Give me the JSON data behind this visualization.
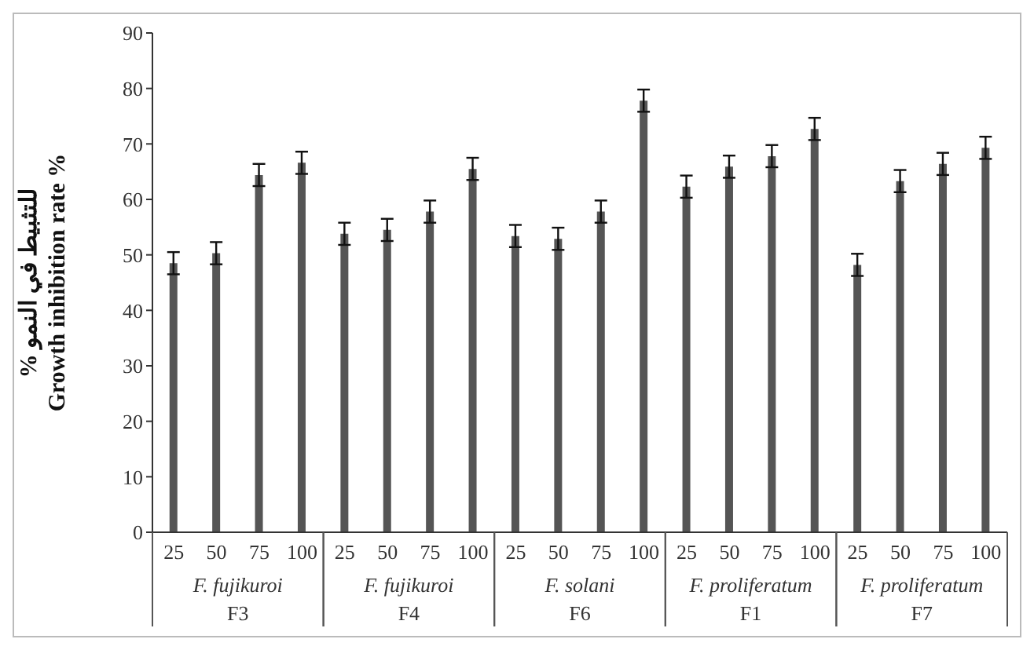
{
  "chart_data": {
    "type": "bar",
    "ylabel": "% للتثبيط في النمو\nGrowth inhibition rate %",
    "categories": [
      "25",
      "50",
      "75",
      "100",
      "25",
      "50",
      "75",
      "100",
      "25",
      "50",
      "75",
      "100",
      "25",
      "50",
      "75",
      "100",
      "25",
      "50",
      "75",
      "100"
    ],
    "values": [
      48.5,
      50.3,
      64.4,
      66.6,
      53.8,
      54.5,
      57.8,
      65.5,
      53.4,
      52.9,
      57.8,
      77.8,
      62.3,
      65.9,
      67.8,
      72.7,
      48.2,
      63.3,
      66.4,
      69.3
    ],
    "errors": [
      2,
      2,
      2,
      2,
      2,
      2,
      2,
      2,
      2,
      2,
      2,
      2,
      2,
      2,
      2,
      2,
      2,
      2,
      2,
      2
    ],
    "color": "#555555",
    "ylim": [
      0,
      90
    ],
    "yticks": [
      0,
      10,
      20,
      30,
      40,
      50,
      60,
      70,
      80,
      90
    ],
    "grid": false,
    "annotations": [
      "F. fujikuroi\nF3",
      "F. fujikuroi\nF4",
      "F. solani\nF6",
      "F. proliferatum\nF1",
      "F. proliferatum\nF7"
    ]
  }
}
